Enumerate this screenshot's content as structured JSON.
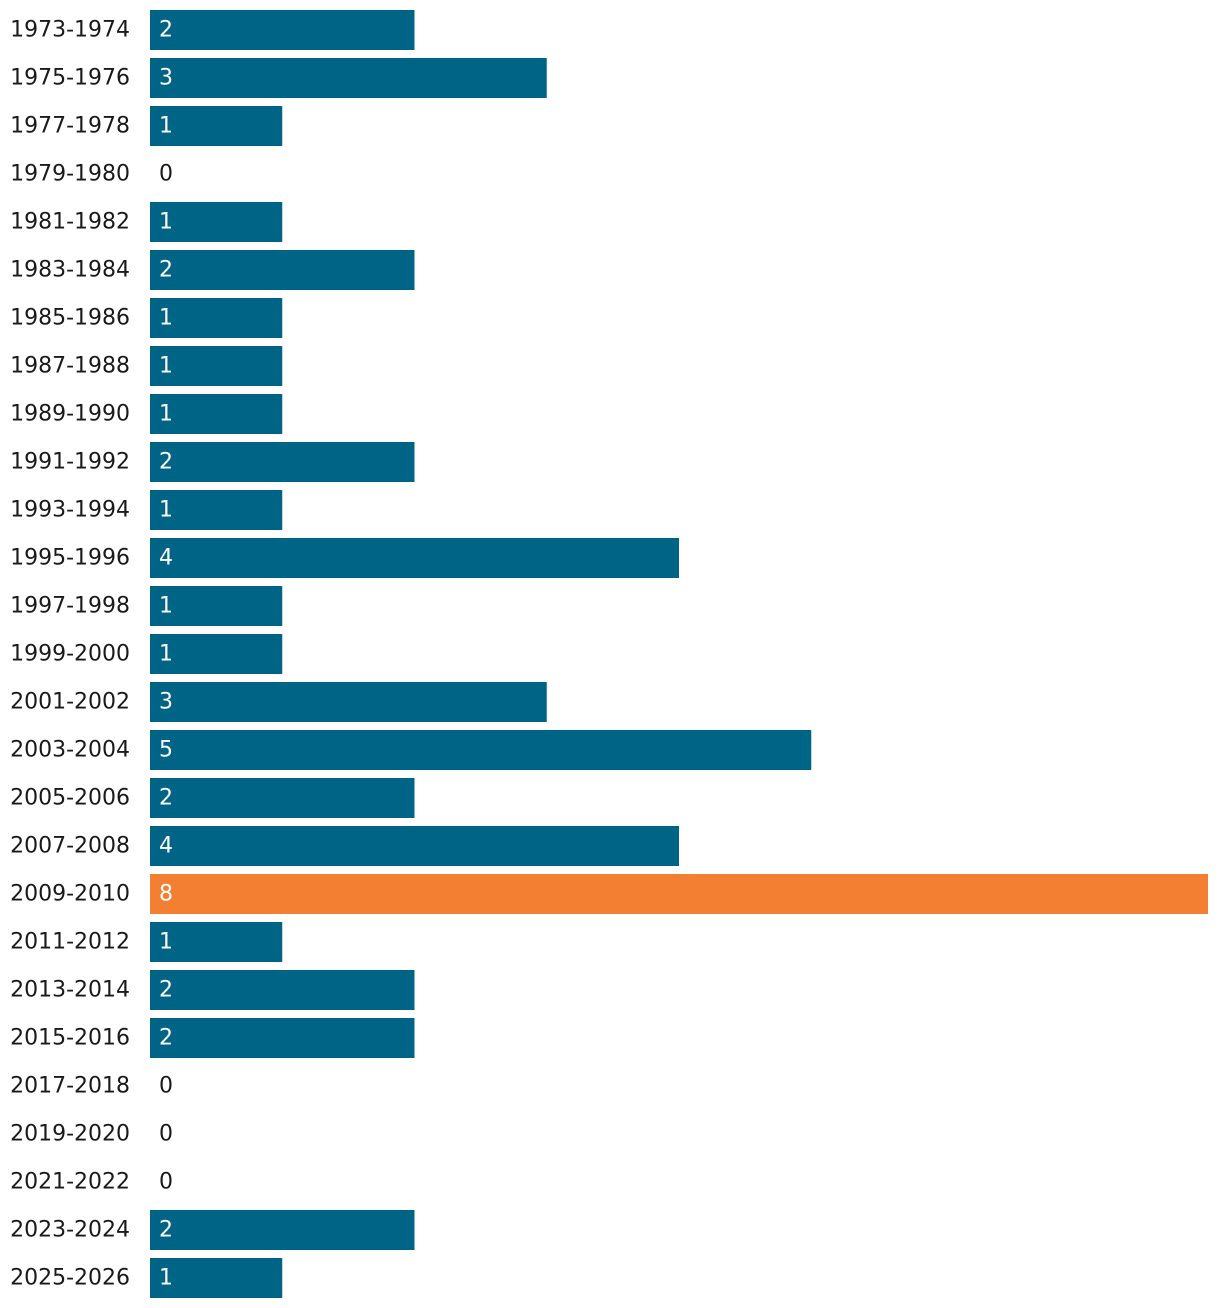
{
  "chart_data": {
    "type": "bar",
    "orientation": "horizontal",
    "categories": [
      "1973-1974",
      "1975-1976",
      "1977-1978",
      "1979-1980",
      "1981-1982",
      "1983-1984",
      "1985-1986",
      "1987-1988",
      "1989-1990",
      "1991-1992",
      "1993-1994",
      "1995-1996",
      "1997-1998",
      "1999-2000",
      "2001-2002",
      "2003-2004",
      "2005-2006",
      "2007-2008",
      "2009-2010",
      "2011-2012",
      "2013-2014",
      "2015-2016",
      "2017-2018",
      "2019-2020",
      "2021-2022",
      "2023-2024",
      "2025-2026"
    ],
    "values": [
      2,
      3,
      1,
      0,
      1,
      2,
      1,
      1,
      1,
      2,
      1,
      4,
      1,
      1,
      3,
      5,
      2,
      4,
      8,
      1,
      2,
      2,
      0,
      0,
      0,
      2,
      1
    ],
    "highlight_category": "2009-2010",
    "colors": {
      "default_bar": "#006487",
      "highlight_bar": "#f38032",
      "label_on_bar": "#ffffff",
      "label_off_bar": "#1a1a1a"
    },
    "xlim": [
      0,
      8
    ],
    "grid": false,
    "title": "",
    "xlabel": "",
    "ylabel": ""
  }
}
